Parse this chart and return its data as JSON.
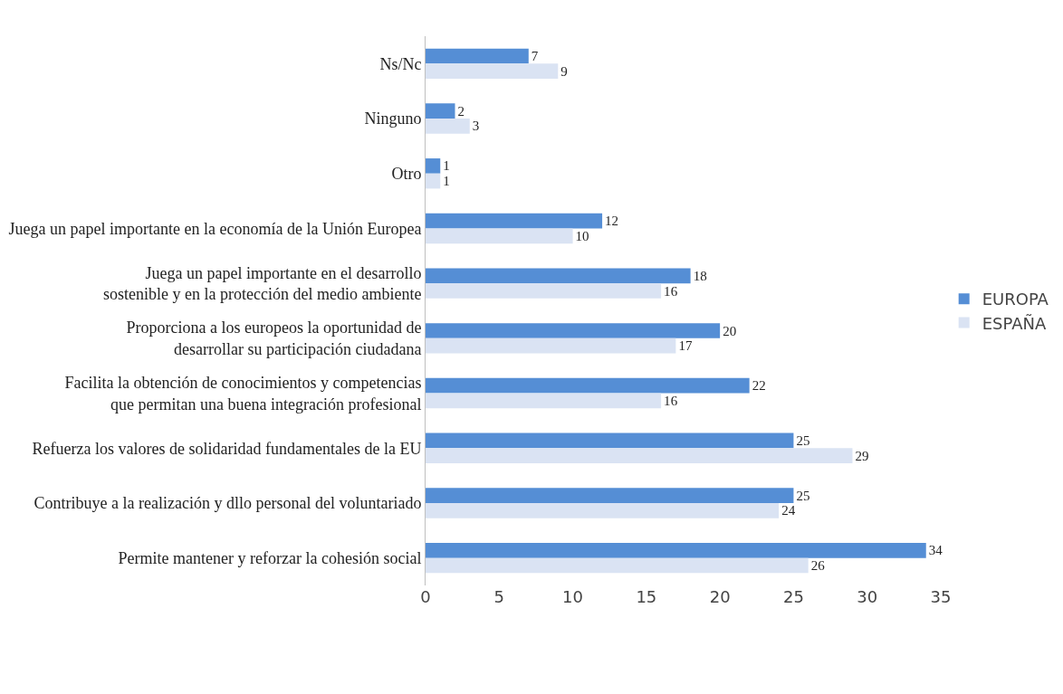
{
  "chart_data": {
    "type": "bar",
    "orientation": "horizontal",
    "categories": [
      "Ns/Nc",
      "Ninguno",
      "Otro",
      "Juega un papel importante en la economía de la Unión Europea",
      "Juega un papel importante en el desarrollo sostenible y en la protección del medio ambiente",
      "Proporciona a los europeos la oportunidad de desarrollar su participación ciudadana",
      "Facilita la obtención de conocimientos y competencias que permitan una buena integración profesional",
      "Refuerza los valores de solidaridad fundamentales de la EU",
      "Contribuye a la realización y dllo personal del voluntariado",
      "Permite mantener y reforzar la cohesión social"
    ],
    "series": [
      {
        "name": "EUROPA",
        "color": "#558ed5",
        "values": [
          7,
          2,
          1,
          12,
          18,
          20,
          22,
          25,
          25,
          34
        ]
      },
      {
        "name": "ESPAÑA",
        "color": "#dae3f3",
        "values": [
          9,
          3,
          1,
          10,
          16,
          17,
          16,
          29,
          24,
          26
        ]
      }
    ],
    "xlim": [
      0,
      35
    ],
    "xticks": [
      0,
      5,
      10,
      15,
      20,
      25,
      30,
      35
    ],
    "grid": false,
    "legend": "right",
    "data_labels": true
  }
}
